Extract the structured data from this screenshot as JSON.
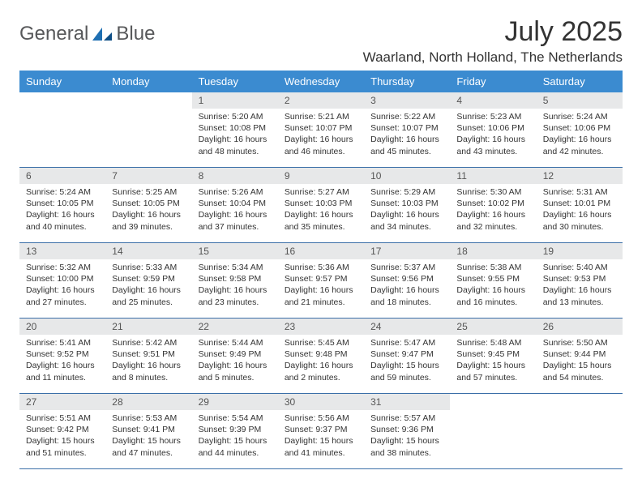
{
  "brand": {
    "part1": "General",
    "part2": "Blue"
  },
  "title": "July 2025",
  "location": "Waarland, North Holland, The Netherlands",
  "colors": {
    "header_bg": "#3b8bd0",
    "header_fg": "#ffffff",
    "daynum_bg": "#e7e8e9",
    "rule": "#3b6fa8",
    "text": "#333333",
    "logo_gray": "#57585a",
    "logo_blue": "#1f6fb2"
  },
  "weekdays": [
    "Sunday",
    "Monday",
    "Tuesday",
    "Wednesday",
    "Thursday",
    "Friday",
    "Saturday"
  ],
  "first_weekday_index": 2,
  "days": [
    {
      "n": 1,
      "sunrise": "5:20 AM",
      "sunset": "10:08 PM",
      "daylight": "16 hours and 48 minutes."
    },
    {
      "n": 2,
      "sunrise": "5:21 AM",
      "sunset": "10:07 PM",
      "daylight": "16 hours and 46 minutes."
    },
    {
      "n": 3,
      "sunrise": "5:22 AM",
      "sunset": "10:07 PM",
      "daylight": "16 hours and 45 minutes."
    },
    {
      "n": 4,
      "sunrise": "5:23 AM",
      "sunset": "10:06 PM",
      "daylight": "16 hours and 43 minutes."
    },
    {
      "n": 5,
      "sunrise": "5:24 AM",
      "sunset": "10:06 PM",
      "daylight": "16 hours and 42 minutes."
    },
    {
      "n": 6,
      "sunrise": "5:24 AM",
      "sunset": "10:05 PM",
      "daylight": "16 hours and 40 minutes."
    },
    {
      "n": 7,
      "sunrise": "5:25 AM",
      "sunset": "10:05 PM",
      "daylight": "16 hours and 39 minutes."
    },
    {
      "n": 8,
      "sunrise": "5:26 AM",
      "sunset": "10:04 PM",
      "daylight": "16 hours and 37 minutes."
    },
    {
      "n": 9,
      "sunrise": "5:27 AM",
      "sunset": "10:03 PM",
      "daylight": "16 hours and 35 minutes."
    },
    {
      "n": 10,
      "sunrise": "5:29 AM",
      "sunset": "10:03 PM",
      "daylight": "16 hours and 34 minutes."
    },
    {
      "n": 11,
      "sunrise": "5:30 AM",
      "sunset": "10:02 PM",
      "daylight": "16 hours and 32 minutes."
    },
    {
      "n": 12,
      "sunrise": "5:31 AM",
      "sunset": "10:01 PM",
      "daylight": "16 hours and 30 minutes."
    },
    {
      "n": 13,
      "sunrise": "5:32 AM",
      "sunset": "10:00 PM",
      "daylight": "16 hours and 27 minutes."
    },
    {
      "n": 14,
      "sunrise": "5:33 AM",
      "sunset": "9:59 PM",
      "daylight": "16 hours and 25 minutes."
    },
    {
      "n": 15,
      "sunrise": "5:34 AM",
      "sunset": "9:58 PM",
      "daylight": "16 hours and 23 minutes."
    },
    {
      "n": 16,
      "sunrise": "5:36 AM",
      "sunset": "9:57 PM",
      "daylight": "16 hours and 21 minutes."
    },
    {
      "n": 17,
      "sunrise": "5:37 AM",
      "sunset": "9:56 PM",
      "daylight": "16 hours and 18 minutes."
    },
    {
      "n": 18,
      "sunrise": "5:38 AM",
      "sunset": "9:55 PM",
      "daylight": "16 hours and 16 minutes."
    },
    {
      "n": 19,
      "sunrise": "5:40 AM",
      "sunset": "9:53 PM",
      "daylight": "16 hours and 13 minutes."
    },
    {
      "n": 20,
      "sunrise": "5:41 AM",
      "sunset": "9:52 PM",
      "daylight": "16 hours and 11 minutes."
    },
    {
      "n": 21,
      "sunrise": "5:42 AM",
      "sunset": "9:51 PM",
      "daylight": "16 hours and 8 minutes."
    },
    {
      "n": 22,
      "sunrise": "5:44 AM",
      "sunset": "9:49 PM",
      "daylight": "16 hours and 5 minutes."
    },
    {
      "n": 23,
      "sunrise": "5:45 AM",
      "sunset": "9:48 PM",
      "daylight": "16 hours and 2 minutes."
    },
    {
      "n": 24,
      "sunrise": "5:47 AM",
      "sunset": "9:47 PM",
      "daylight": "15 hours and 59 minutes."
    },
    {
      "n": 25,
      "sunrise": "5:48 AM",
      "sunset": "9:45 PM",
      "daylight": "15 hours and 57 minutes."
    },
    {
      "n": 26,
      "sunrise": "5:50 AM",
      "sunset": "9:44 PM",
      "daylight": "15 hours and 54 minutes."
    },
    {
      "n": 27,
      "sunrise": "5:51 AM",
      "sunset": "9:42 PM",
      "daylight": "15 hours and 51 minutes."
    },
    {
      "n": 28,
      "sunrise": "5:53 AM",
      "sunset": "9:41 PM",
      "daylight": "15 hours and 47 minutes."
    },
    {
      "n": 29,
      "sunrise": "5:54 AM",
      "sunset": "9:39 PM",
      "daylight": "15 hours and 44 minutes."
    },
    {
      "n": 30,
      "sunrise": "5:56 AM",
      "sunset": "9:37 PM",
      "daylight": "15 hours and 41 minutes."
    },
    {
      "n": 31,
      "sunrise": "5:57 AM",
      "sunset": "9:36 PM",
      "daylight": "15 hours and 38 minutes."
    }
  ],
  "labels": {
    "sunrise": "Sunrise: ",
    "sunset": "Sunset: ",
    "daylight": "Daylight: "
  }
}
